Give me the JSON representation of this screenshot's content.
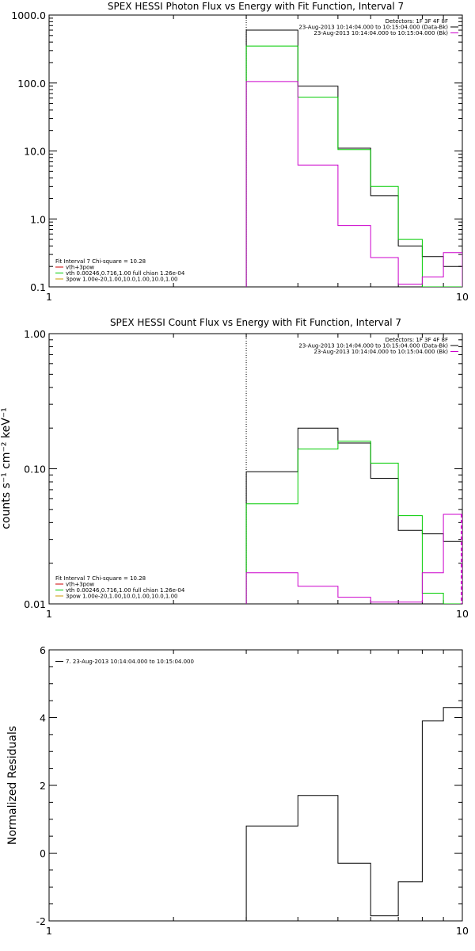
{
  "chart_data": [
    {
      "type": "line",
      "title": "SPEX HESSI Photon Flux vs Energy with Fit Function, Interval 7",
      "xlabel": "",
      "ylabel": "",
      "x_scale": "log",
      "y_scale": "log",
      "xlim": [
        1,
        10
      ],
      "ylim": [
        0.1,
        1000
      ],
      "x_ticks": [
        {
          "value": 1,
          "label": "1"
        },
        {
          "value": 10,
          "label": "10"
        }
      ],
      "y_ticks": [
        {
          "value": 0.1,
          "label": "0.1"
        },
        {
          "value": 1,
          "label": "1.0"
        },
        {
          "value": 10,
          "label": "10.0"
        },
        {
          "value": 100,
          "label": "100.0"
        },
        {
          "value": 1000,
          "label": "1000.0"
        }
      ],
      "grid": false,
      "legend_top_right": [
        {
          "text": "Detectors: 1F 3F 4F 8F",
          "color": "#000000",
          "swatch": false
        },
        {
          "text": "23-Aug-2013 10:14:04.000 to 10:15:04.000 (Data-Bk)",
          "color": "#000000",
          "swatch": true
        },
        {
          "text": "23-Aug-2013 10:14:04.000 to 10:15:04.000 (Bk)",
          "color": "#cc00cc",
          "swatch": true
        }
      ],
      "legend_bottom_left": [
        {
          "text": "Fit Interval 7   Chi-square = 10.28",
          "color": "#000000",
          "swatch": false
        },
        {
          "text": "vth+3pow",
          "color": "#cc0000",
          "swatch": true
        },
        {
          "text": "vth 0.00246,0.716,1.00   full chian 1.26e-04",
          "color": "#00cc00",
          "swatch": true
        },
        {
          "text": "3pow 1.00e-20,1.00,10.0,1.00,10.0,1.00",
          "color": "#cc9900",
          "swatch": true
        }
      ],
      "vline_x": 3,
      "series": [
        {
          "color": "#000000",
          "edges": [
            3,
            4,
            5,
            6,
            7,
            8,
            9,
            10
          ],
          "values": [
            600,
            90,
            11,
            2.2,
            0.4,
            0.28,
            0.2
          ]
        },
        {
          "color": "#00cc00",
          "edges": [
            3,
            4,
            5,
            6,
            7,
            8,
            9,
            10
          ],
          "values": [
            350,
            62,
            10.5,
            3,
            0.5,
            0.1,
            0.08
          ]
        },
        {
          "color": "#cc00cc",
          "edges": [
            3,
            4,
            5,
            6,
            7,
            8,
            9,
            10
          ],
          "values": [
            105,
            6.2,
            0.8,
            0.27,
            0.11,
            0.14,
            0.32
          ]
        }
      ]
    },
    {
      "type": "line",
      "title": "SPEX HESSI Count Flux vs Energy with Fit Function, Interval 7",
      "xlabel": "",
      "ylabel": "counts s⁻¹ cm⁻² keV⁻¹",
      "x_scale": "log",
      "y_scale": "log",
      "xlim": [
        1,
        10
      ],
      "ylim": [
        0.01,
        1.0
      ],
      "x_ticks": [
        {
          "value": 1,
          "label": "1"
        },
        {
          "value": 10,
          "label": "10"
        }
      ],
      "y_ticks": [
        {
          "value": 0.01,
          "label": "0.01"
        },
        {
          "value": 0.1,
          "label": "0.10"
        },
        {
          "value": 1,
          "label": "1.00"
        }
      ],
      "grid": false,
      "legend_top_right": [
        {
          "text": "Detectors: 1F 3F 4F 8F",
          "color": "#000000",
          "swatch": false
        },
        {
          "text": "23-Aug-2013 10:14:04.000 to 10:15:04.000 (Data-Bk)",
          "color": "#000000",
          "swatch": true
        },
        {
          "text": "23-Aug-2013 10:14:04.000 to 10:15:04.000 (Bk)",
          "color": "#cc00cc",
          "swatch": true
        }
      ],
      "legend_bottom_left": [
        {
          "text": "Fit Interval 7   Chi-square = 10.28",
          "color": "#000000",
          "swatch": false
        },
        {
          "text": "vth+3pow",
          "color": "#cc0000",
          "swatch": true
        },
        {
          "text": "vth 0.00246,0.716,1.00   full chian 1.26e-04",
          "color": "#00cc00",
          "swatch": true
        },
        {
          "text": "3pow 1.00e-20,1.00,10.0,1.00,10.0,1.00",
          "color": "#cc9900",
          "swatch": true
        }
      ],
      "vline_x": 3,
      "series": [
        {
          "color": "#000000",
          "edges": [
            3,
            4,
            5,
            6,
            7,
            8,
            9,
            10
          ],
          "values": [
            0.095,
            0.2,
            0.155,
            0.085,
            0.035,
            0.033,
            0.029
          ]
        },
        {
          "color": "#00cc00",
          "edges": [
            3,
            4,
            5,
            6,
            7,
            8,
            9,
            10
          ],
          "values": [
            0.055,
            0.14,
            0.16,
            0.11,
            0.045,
            0.012,
            0.009
          ]
        },
        {
          "color": "#cc00cc",
          "edges": [
            3,
            4,
            5,
            6,
            7,
            8,
            9,
            10
          ],
          "values": [
            0.017,
            0.0135,
            0.0112,
            0.0103,
            0.0103,
            0.017,
            0.046
          ]
        }
      ]
    },
    {
      "type": "line",
      "title": "",
      "xlabel": "",
      "ylabel": "Normalized Residuals",
      "x_scale": "log",
      "y_scale": "linear",
      "xlim": [
        1,
        10
      ],
      "ylim": [
        -2,
        6
      ],
      "x_ticks": [
        {
          "value": 1,
          "label": "1"
        },
        {
          "value": 10,
          "label": "10"
        }
      ],
      "y_ticks": [
        {
          "value": -2,
          "label": "-2"
        },
        {
          "value": 0,
          "label": "0"
        },
        {
          "value": 2,
          "label": "2"
        },
        {
          "value": 4,
          "label": "4"
        },
        {
          "value": 6,
          "label": "6"
        }
      ],
      "grid": false,
      "legend_top_left": [
        {
          "text": "7. 23-Aug-2013 10:14:04.000 to 10:15:04.000",
          "color": "#000000",
          "swatch": true
        }
      ],
      "series": [
        {
          "color": "#000000",
          "edges": [
            3,
            4,
            5,
            6,
            7,
            8,
            9,
            10
          ],
          "values": [
            0.8,
            1.7,
            -0.3,
            -1.85,
            -0.85,
            3.9,
            4.3
          ]
        }
      ]
    }
  ]
}
